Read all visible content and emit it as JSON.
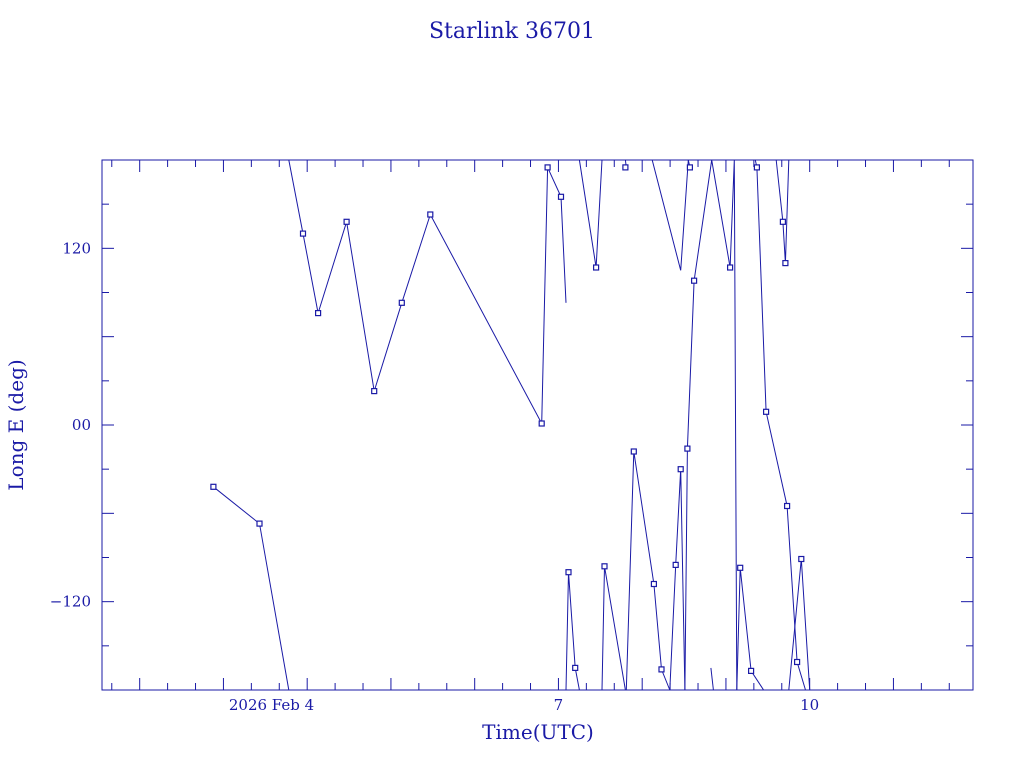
{
  "chart_data": {
    "type": "line",
    "title": "Starlink 36701",
    "xlabel": "Time(UTC)",
    "ylabel": "Long E (deg)",
    "xlim": [
      1.55,
      11.95
    ],
    "ylim": [
      -180,
      180
    ],
    "grid": false,
    "x_tick_labels": [
      {
        "x": 4.0,
        "label": "2026 Feb  4"
      },
      {
        "x": 7.0,
        "label": "7"
      },
      {
        "x": 10.0,
        "label": "10"
      }
    ],
    "y_tick_labels": [
      {
        "y": 120,
        "label": "120"
      },
      {
        "y": 0,
        "label": "00"
      },
      {
        "y": -120,
        "label": "−120"
      }
    ],
    "color": "#1a1aa6",
    "series": [
      {
        "x": [
          2.88,
          3.43,
          3.78
        ],
        "y": [
          -42,
          -67,
          -180
        ]
      },
      {
        "x": [
          3.78,
          3.95,
          4.13,
          4.47,
          4.8,
          5.13,
          5.47,
          6.8,
          6.87,
          7.03,
          7.09
        ],
        "y": [
          180,
          130,
          76,
          138,
          23,
          83,
          143,
          1,
          175,
          155,
          83
        ]
      },
      {
        "x": [
          7.09,
          7.12,
          7.2,
          7.25
        ],
        "y": [
          -180,
          -100,
          -165,
          -180
        ]
      },
      {
        "x": [
          7.25,
          7.45,
          7.52
        ],
        "y": [
          180,
          107,
          180
        ]
      },
      {
        "x": [
          7.52,
          7.55,
          7.8
        ],
        "y": [
          -180,
          -96,
          -180
        ]
      },
      {
        "x": [
          7.8,
          7.81
        ],
        "y": [
          180,
          175
        ]
      },
      {
        "x": [
          7.81,
          7.9,
          8.14,
          8.23,
          8.33,
          8.4
        ],
        "y": [
          -180,
          -18,
          -108,
          -166,
          -180,
          -95
        ]
      },
      {
        "x": [
          8.4,
          8.46,
          8.51
        ],
        "y": [
          -95,
          -30,
          -180
        ]
      },
      {
        "x": [
          8.12,
          8.46,
          8.55
        ],
        "y": [
          180,
          105,
          180
        ]
      },
      {
        "x": [
          8.55,
          8.57
        ],
        "y": [
          180,
          175
        ]
      },
      {
        "x": [
          8.51,
          8.54,
          8.62,
          8.83,
          9.05
        ],
        "y": [
          -180,
          -16,
          98,
          180,
          107
        ]
      },
      {
        "x": [
          9.05,
          9.1,
          9.13
        ],
        "y": [
          107,
          180,
          -180
        ]
      },
      {
        "x": [
          9.13,
          9.17,
          9.3,
          9.45,
          9.46
        ],
        "y": [
          -180,
          -97,
          -167,
          -180,
          -180
        ]
      },
      {
        "x": [
          8.82,
          8.85
        ],
        "y": [
          -165,
          -180
        ]
      },
      {
        "x": [
          9.35,
          9.37
        ],
        "y": [
          180,
          175
        ]
      },
      {
        "x": [
          9.37,
          9.48,
          9.73,
          9.85,
          9.95
        ],
        "y": [
          175,
          9,
          -55,
          -161,
          -180
        ]
      },
      {
        "x": [
          9.6,
          9.68,
          9.71,
          9.75
        ],
        "y": [
          180,
          138,
          110,
          180
        ]
      },
      {
        "x": [
          9.75,
          9.9,
          10.0
        ],
        "y": [
          -180,
          -91,
          -180
        ]
      }
    ],
    "points_x": [
      2.88,
      3.43,
      3.95,
      4.13,
      4.47,
      4.8,
      5.13,
      5.47,
      6.8,
      6.87,
      7.03,
      7.12,
      7.2,
      7.45,
      7.55,
      7.8,
      7.9,
      8.14,
      8.23,
      8.4,
      8.46,
      8.54,
      8.62,
      8.57,
      9.05,
      9.17,
      9.3,
      9.37,
      9.48,
      9.73,
      9.85,
      9.68,
      9.71,
      9.9
    ],
    "points_y": [
      -42,
      -67,
      130,
      76,
      138,
      23,
      83,
      143,
      1,
      175,
      155,
      -100,
      -165,
      107,
      -96,
      175,
      -18,
      -108,
      -166,
      -95,
      -30,
      -16,
      98,
      175,
      107,
      -97,
      -167,
      175,
      9,
      -55,
      -161,
      138,
      110,
      -91
    ]
  }
}
